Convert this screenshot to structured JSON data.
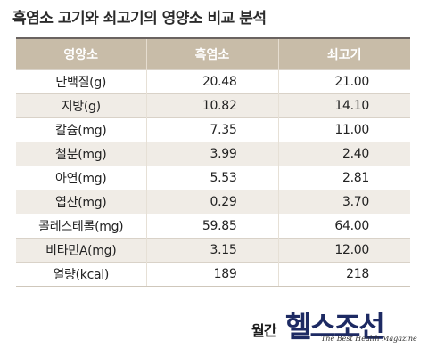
{
  "title": "흑염소 고기와 쇠고기의 영양소 비교 분석",
  "table": {
    "headers": [
      "영양소",
      "흑염소",
      "쇠고기"
    ],
    "rows": [
      {
        "name": "단백질(g)",
        "goat": "20.48",
        "beef": "21.00"
      },
      {
        "name": "지방(g)",
        "goat": "10.82",
        "beef": "14.10"
      },
      {
        "name": "칼슘(mg)",
        "goat": "7.35",
        "beef": "11.00"
      },
      {
        "name": "철분(mg)",
        "goat": "3.99",
        "beef": "2.40"
      },
      {
        "name": "아연(mg)",
        "goat": "5.53",
        "beef": "2.81"
      },
      {
        "name": "엽산(mg)",
        "goat": "0.29",
        "beef": "3.70"
      },
      {
        "name": "콜레스테롤(mg)",
        "goat": "59.85",
        "beef": "64.00"
      },
      {
        "name": "비타민A(mg)",
        "goat": "3.15",
        "beef": "12.00"
      },
      {
        "name": "열량(kcal)",
        "goat": "189",
        "beef": "218"
      }
    ]
  },
  "logo": {
    "prefix": "월간",
    "name": "헬스조선",
    "tagline": "The Best Health Magazine"
  },
  "colors": {
    "header_bg": "#c8bca8",
    "alt_row_bg": "#f0ece6",
    "logo_color": "#1d2a63"
  }
}
